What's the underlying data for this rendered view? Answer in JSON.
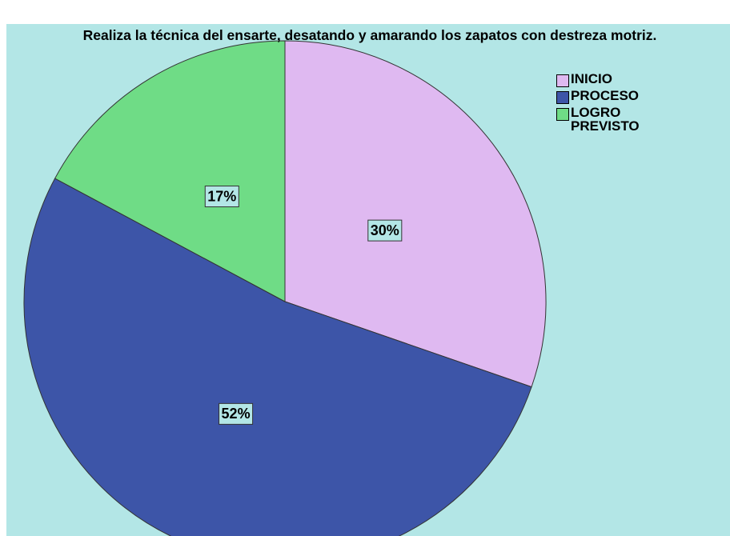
{
  "chart_data": {
    "type": "pie",
    "title": "Realiza la técnica del ensarte, desatando y amarando los zapatos con destreza motriz.",
    "categories": [
      "INICIO",
      "PROCESO",
      "LOGRO PREVISTO"
    ],
    "values": [
      30,
      52,
      17
    ],
    "value_labels": [
      "30%",
      "52%",
      "17%"
    ],
    "colors": [
      "#dfb9f1",
      "#3d55a8",
      "#6fdc86"
    ],
    "legend": "top-right"
  }
}
